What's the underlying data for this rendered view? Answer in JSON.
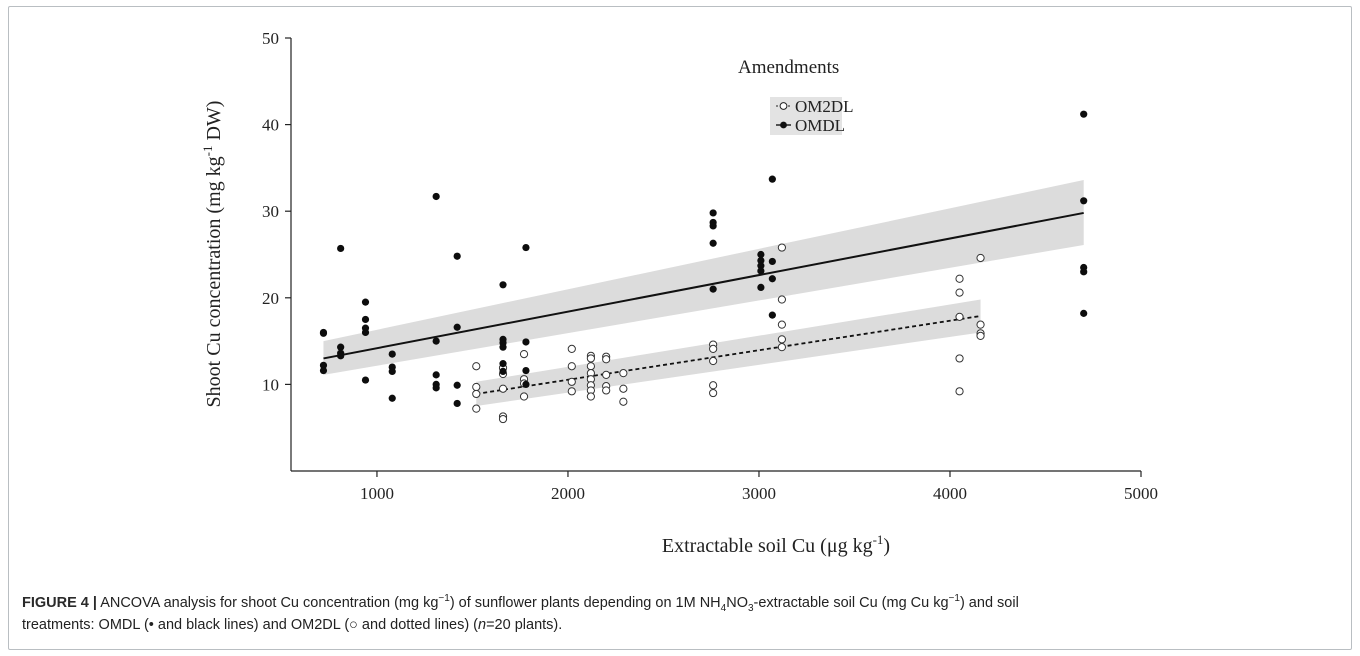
{
  "chart_data": {
    "type": "scatter",
    "xlim": [
      550,
      5000
    ],
    "ylim": [
      0,
      50
    ],
    "x_ticks": [
      1000,
      2000,
      3000,
      4000,
      5000
    ],
    "y_ticks": [
      10,
      20,
      30,
      40,
      50
    ],
    "legend": {
      "title": "Amendments",
      "placement": "top-center"
    },
    "series": [
      {
        "name": "OM2DL",
        "marker": "open-circle",
        "line_style": "dotted",
        "fit": {
          "x": [
            1520,
            4160
          ],
          "y": [
            8.9,
            17.9
          ]
        },
        "band": {
          "upper": [
            10.3,
            19.8
          ],
          "lower": [
            7.5,
            16.0
          ]
        },
        "points": [
          [
            1520,
            12.1
          ],
          [
            1520,
            9.7
          ],
          [
            1520,
            8.9
          ],
          [
            1520,
            7.2
          ],
          [
            1660,
            11.9
          ],
          [
            1660,
            11.2
          ],
          [
            1660,
            9.5
          ],
          [
            1660,
            6.3
          ],
          [
            1660,
            6.0
          ],
          [
            1770,
            13.5
          ],
          [
            1770,
            10.6
          ],
          [
            1770,
            10.1
          ],
          [
            1770,
            8.6
          ],
          [
            2020,
            14.1
          ],
          [
            2020,
            12.1
          ],
          [
            2020,
            10.3
          ],
          [
            2020,
            9.2
          ],
          [
            2120,
            13.3
          ],
          [
            2120,
            13.0
          ],
          [
            2120,
            12.1
          ],
          [
            2120,
            11.3
          ],
          [
            2120,
            10.6
          ],
          [
            2120,
            9.9
          ],
          [
            2120,
            9.3
          ],
          [
            2120,
            8.6
          ],
          [
            2200,
            13.2
          ],
          [
            2200,
            12.9
          ],
          [
            2200,
            11.1
          ],
          [
            2200,
            9.8
          ],
          [
            2200,
            9.3
          ],
          [
            2290,
            11.3
          ],
          [
            2290,
            9.5
          ],
          [
            2290,
            8.0
          ],
          [
            2760,
            14.6
          ],
          [
            2760,
            14.1
          ],
          [
            2760,
            12.7
          ],
          [
            2760,
            9.9
          ],
          [
            2760,
            9.0
          ],
          [
            3120,
            25.8
          ],
          [
            3120,
            19.8
          ],
          [
            3120,
            16.9
          ],
          [
            3120,
            15.2
          ],
          [
            3120,
            14.3
          ],
          [
            4050,
            22.2
          ],
          [
            4050,
            20.6
          ],
          [
            4050,
            17.8
          ],
          [
            4050,
            13.0
          ],
          [
            4050,
            9.2
          ],
          [
            4160,
            24.6
          ],
          [
            4160,
            16.9
          ],
          [
            4160,
            15.9
          ],
          [
            4160,
            15.6
          ]
        ]
      },
      {
        "name": "OMDL",
        "marker": "filled-circle",
        "line_style": "solid",
        "fit": {
          "x": [
            720,
            4700
          ],
          "y": [
            13.0,
            29.8
          ]
        },
        "band": {
          "upper": [
            15.0,
            33.6
          ],
          "lower": [
            11.1,
            26.1
          ]
        },
        "points": [
          [
            720,
            16.0
          ],
          [
            720,
            15.9
          ],
          [
            720,
            12.2
          ],
          [
            720,
            11.6
          ],
          [
            810,
            25.7
          ],
          [
            810,
            14.3
          ],
          [
            810,
            13.6
          ],
          [
            810,
            13.3
          ],
          [
            940,
            19.5
          ],
          [
            940,
            17.5
          ],
          [
            940,
            16.5
          ],
          [
            940,
            16.0
          ],
          [
            940,
            10.5
          ],
          [
            1080,
            13.5
          ],
          [
            1080,
            12.0
          ],
          [
            1080,
            11.5
          ],
          [
            1080,
            8.4
          ],
          [
            1310,
            31.7
          ],
          [
            1310,
            15.0
          ],
          [
            1310,
            11.1
          ],
          [
            1310,
            10.0
          ],
          [
            1310,
            9.6
          ],
          [
            1420,
            24.8
          ],
          [
            1420,
            16.6
          ],
          [
            1420,
            9.9
          ],
          [
            1420,
            7.8
          ],
          [
            1660,
            21.5
          ],
          [
            1660,
            15.2
          ],
          [
            1660,
            14.8
          ],
          [
            1660,
            14.3
          ],
          [
            1660,
            12.4
          ],
          [
            1660,
            11.5
          ],
          [
            1780,
            25.8
          ],
          [
            1780,
            14.9
          ],
          [
            1780,
            11.6
          ],
          [
            1780,
            10.0
          ],
          [
            2760,
            29.8
          ],
          [
            2760,
            28.7
          ],
          [
            2760,
            28.3
          ],
          [
            2760,
            26.3
          ],
          [
            2760,
            21.0
          ],
          [
            3010,
            25.0
          ],
          [
            3010,
            24.3
          ],
          [
            3010,
            23.7
          ],
          [
            3010,
            23.1
          ],
          [
            3010,
            21.2
          ],
          [
            3070,
            33.7
          ],
          [
            3070,
            24.2
          ],
          [
            3070,
            22.2
          ],
          [
            3070,
            18.0
          ],
          [
            4700,
            41.2
          ],
          [
            4700,
            31.2
          ],
          [
            4700,
            23.5
          ],
          [
            4700,
            23.0
          ],
          [
            4700,
            18.2
          ]
        ]
      }
    ]
  },
  "texts": {
    "ylabel_main": "Shoot Cu concentration (mg kg",
    "ylabel_sup": "-1",
    "ylabel_end": " DW)",
    "xlabel_main": "Extractable soil Cu (μg kg",
    "xlabel_sup": "-1",
    "xlabel_end": ")",
    "legend_title": "Amendments",
    "legend_item_1": "OM2DL",
    "legend_item_2": "OMDL"
  },
  "caption": {
    "label": "FIGURE 4 |",
    "t1": " ANCOVA analysis for shoot Cu concentration (mg kg",
    "sup1": "−1",
    "t2": ") of sunflower plants depending on 1M NH",
    "sub1": "4",
    "t3": "NO",
    "sub2": "3",
    "t4": "-extractable soil Cu (mg Cu kg",
    "sup2": "−1",
    "t5": ") and soil",
    "line2_a": "treatments: OMDL (• and black lines) and OM2DL (○ and dotted lines) (",
    "line2_n": "n",
    "line2_b": "=20 plants)."
  }
}
